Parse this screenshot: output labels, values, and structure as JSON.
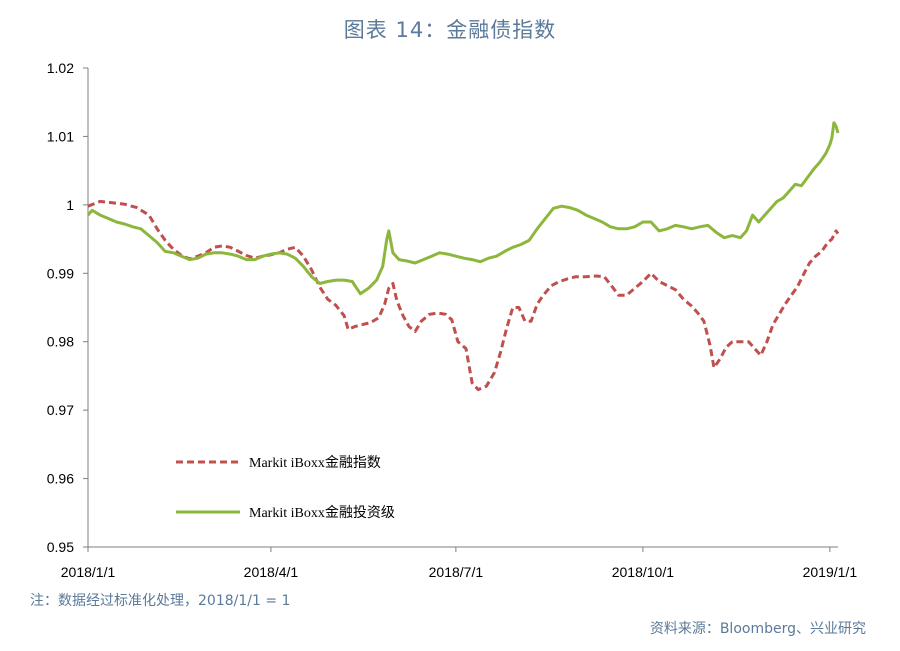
{
  "page": {
    "title": "图表 14：金融债指数",
    "note": "注：数据经过标准化处理，2018/1/1 = 1",
    "source": "资料来源：Bloomberg、兴业研究"
  },
  "chart_data": {
    "type": "line",
    "title": "图表 14：金融债指数",
    "xlabel": "",
    "ylabel": "",
    "x_ticks": [
      "2018/1/1",
      "2018/4/1",
      "2018/7/1",
      "2018/10/1",
      "2019/1/1"
    ],
    "x_tick_days": [
      0,
      90,
      181,
      273,
      365
    ],
    "y_ticks": [
      "1.02",
      "1.01",
      "1",
      "0.99",
      "0.98",
      "0.97",
      "0.96",
      "0.95"
    ],
    "ylim": [
      0.95,
      1.02
    ],
    "xlim": [
      0,
      369
    ],
    "grid": false,
    "legend_position": "lower-left",
    "series": [
      {
        "name": "Markit iBoxx金融指数",
        "color": "#c0504d",
        "style": "dashed",
        "points": [
          [
            0,
            0.9998
          ],
          [
            6,
            1.0005
          ],
          [
            12,
            1.0003
          ],
          [
            18,
            1.0001
          ],
          [
            24,
            0.9996
          ],
          [
            30,
            0.9985
          ],
          [
            34,
            0.9965
          ],
          [
            38,
            0.9948
          ],
          [
            42,
            0.9935
          ],
          [
            46,
            0.9926
          ],
          [
            50,
            0.9921
          ],
          [
            54,
            0.9925
          ],
          [
            58,
            0.993
          ],
          [
            62,
            0.9938
          ],
          [
            66,
            0.994
          ],
          [
            70,
            0.9938
          ],
          [
            74,
            0.9932
          ],
          [
            78,
            0.9926
          ],
          [
            82,
            0.9922
          ],
          [
            86,
            0.9925
          ],
          [
            90,
            0.9927
          ],
          [
            94,
            0.993
          ],
          [
            98,
            0.9935
          ],
          [
            102,
            0.9938
          ],
          [
            106,
            0.9925
          ],
          [
            110,
            0.9905
          ],
          [
            114,
            0.988
          ],
          [
            118,
            0.9862
          ],
          [
            122,
            0.9853
          ],
          [
            126,
            0.9838
          ],
          [
            128,
            0.9818
          ],
          [
            131,
            0.9822
          ],
          [
            135,
            0.9825
          ],
          [
            139,
            0.9828
          ],
          [
            143,
            0.9835
          ],
          [
            146,
            0.9855
          ],
          [
            148,
            0.9878
          ],
          [
            150,
            0.9885
          ],
          [
            152,
            0.986
          ],
          [
            155,
            0.9838
          ],
          [
            158,
            0.9822
          ],
          [
            161,
            0.9815
          ],
          [
            164,
            0.983
          ],
          [
            168,
            0.984
          ],
          [
            172,
            0.9842
          ],
          [
            176,
            0.984
          ],
          [
            179,
            0.9832
          ],
          [
            182,
            0.98
          ],
          [
            186,
            0.979
          ],
          [
            189,
            0.974
          ],
          [
            192,
            0.973
          ],
          [
            196,
            0.9735
          ],
          [
            200,
            0.9755
          ],
          [
            203,
            0.9785
          ],
          [
            206,
            0.982
          ],
          [
            209,
            0.985
          ],
          [
            212,
            0.985
          ],
          [
            215,
            0.983
          ],
          [
            218,
            0.983
          ],
          [
            221,
            0.9855
          ],
          [
            224,
            0.9868
          ],
          [
            228,
            0.9882
          ],
          [
            232,
            0.9888
          ],
          [
            236,
            0.9892
          ],
          [
            240,
            0.9895
          ],
          [
            245,
            0.9895
          ],
          [
            250,
            0.9896
          ],
          [
            254,
            0.9895
          ],
          [
            258,
            0.988
          ],
          [
            261,
            0.9868
          ],
          [
            265,
            0.9868
          ],
          [
            269,
            0.9878
          ],
          [
            273,
            0.9888
          ],
          [
            277,
            0.99
          ],
          [
            281,
            0.9888
          ],
          [
            285,
            0.9882
          ],
          [
            289,
            0.9876
          ],
          [
            293,
            0.9862
          ],
          [
            297,
            0.9852
          ],
          [
            300,
            0.9842
          ],
          [
            303,
            0.983
          ],
          [
            306,
            0.9795
          ],
          [
            308,
            0.9762
          ],
          [
            311,
            0.9775
          ],
          [
            314,
            0.9792
          ],
          [
            317,
            0.98
          ],
          [
            321,
            0.98
          ],
          [
            325,
            0.98
          ],
          [
            328,
            0.979
          ],
          [
            331,
            0.978
          ],
          [
            334,
            0.98
          ],
          [
            337,
            0.9825
          ],
          [
            340,
            0.984
          ],
          [
            343,
            0.9855
          ],
          [
            346,
            0.9868
          ],
          [
            349,
            0.988
          ],
          [
            352,
            0.9898
          ],
          [
            355,
            0.9915
          ],
          [
            358,
            0.9925
          ],
          [
            361,
            0.9932
          ],
          [
            364,
            0.9945
          ],
          [
            366,
            0.995
          ],
          [
            368,
            0.9962
          ],
          [
            369,
            0.9958
          ]
        ]
      },
      {
        "name": "Markit iBoxx金融投资级",
        "color": "#8db63c",
        "style": "solid",
        "points": [
          [
            0,
            0.9985
          ],
          [
            2,
            0.9992
          ],
          [
            6,
            0.9985
          ],
          [
            10,
            0.998
          ],
          [
            14,
            0.9975
          ],
          [
            18,
            0.9972
          ],
          [
            22,
            0.9968
          ],
          [
            26,
            0.9965
          ],
          [
            30,
            0.9955
          ],
          [
            34,
            0.9945
          ],
          [
            38,
            0.9932
          ],
          [
            42,
            0.993
          ],
          [
            46,
            0.9925
          ],
          [
            50,
            0.992
          ],
          [
            54,
            0.9922
          ],
          [
            58,
            0.9928
          ],
          [
            62,
            0.993
          ],
          [
            66,
            0.993
          ],
          [
            70,
            0.9928
          ],
          [
            74,
            0.9925
          ],
          [
            78,
            0.992
          ],
          [
            82,
            0.992
          ],
          [
            86,
            0.9925
          ],
          [
            90,
            0.9928
          ],
          [
            94,
            0.993
          ],
          [
            98,
            0.9928
          ],
          [
            102,
            0.9922
          ],
          [
            106,
            0.991
          ],
          [
            110,
            0.9895
          ],
          [
            114,
            0.9885
          ],
          [
            118,
            0.9888
          ],
          [
            122,
            0.989
          ],
          [
            126,
            0.989
          ],
          [
            130,
            0.9888
          ],
          [
            134,
            0.987
          ],
          [
            138,
            0.9878
          ],
          [
            142,
            0.989
          ],
          [
            145,
            0.991
          ],
          [
            147,
            0.995
          ],
          [
            148,
            0.9962
          ],
          [
            150,
            0.993
          ],
          [
            153,
            0.992
          ],
          [
            157,
            0.9918
          ],
          [
            161,
            0.9915
          ],
          [
            165,
            0.992
          ],
          [
            169,
            0.9925
          ],
          [
            173,
            0.993
          ],
          [
            177,
            0.9928
          ],
          [
            181,
            0.9925
          ],
          [
            185,
            0.9922
          ],
          [
            189,
            0.992
          ],
          [
            193,
            0.9917
          ],
          [
            197,
            0.9922
          ],
          [
            201,
            0.9925
          ],
          [
            205,
            0.9932
          ],
          [
            209,
            0.9938
          ],
          [
            213,
            0.9942
          ],
          [
            217,
            0.9948
          ],
          [
            221,
            0.9965
          ],
          [
            225,
            0.998
          ],
          [
            229,
            0.9995
          ],
          [
            233,
            0.9998
          ],
          [
            237,
            0.9996
          ],
          [
            241,
            0.9992
          ],
          [
            245,
            0.9985
          ],
          [
            249,
            0.998
          ],
          [
            253,
            0.9975
          ],
          [
            257,
            0.9968
          ],
          [
            261,
            0.9965
          ],
          [
            265,
            0.9965
          ],
          [
            269,
            0.9968
          ],
          [
            273,
            0.9975
          ],
          [
            277,
            0.9975
          ],
          [
            281,
            0.9962
          ],
          [
            285,
            0.9965
          ],
          [
            289,
            0.997
          ],
          [
            293,
            0.9968
          ],
          [
            297,
            0.9965
          ],
          [
            301,
            0.9968
          ],
          [
            305,
            0.997
          ],
          [
            309,
            0.996
          ],
          [
            313,
            0.9952
          ],
          [
            317,
            0.9955
          ],
          [
            321,
            0.9952
          ],
          [
            324,
            0.9962
          ],
          [
            327,
            0.9985
          ],
          [
            330,
            0.9975
          ],
          [
            333,
            0.9985
          ],
          [
            336,
            0.9995
          ],
          [
            339,
            1.0005
          ],
          [
            342,
            1.001
          ],
          [
            345,
            1.002
          ],
          [
            348,
            1.003
          ],
          [
            351,
            1.0028
          ],
          [
            354,
            1.004
          ],
          [
            357,
            1.0052
          ],
          [
            360,
            1.0062
          ],
          [
            363,
            1.0075
          ],
          [
            365,
            1.0088
          ],
          [
            366,
            1.0098
          ],
          [
            367,
            1.012
          ],
          [
            368,
            1.0115
          ],
          [
            369,
            1.0105
          ]
        ]
      }
    ]
  }
}
